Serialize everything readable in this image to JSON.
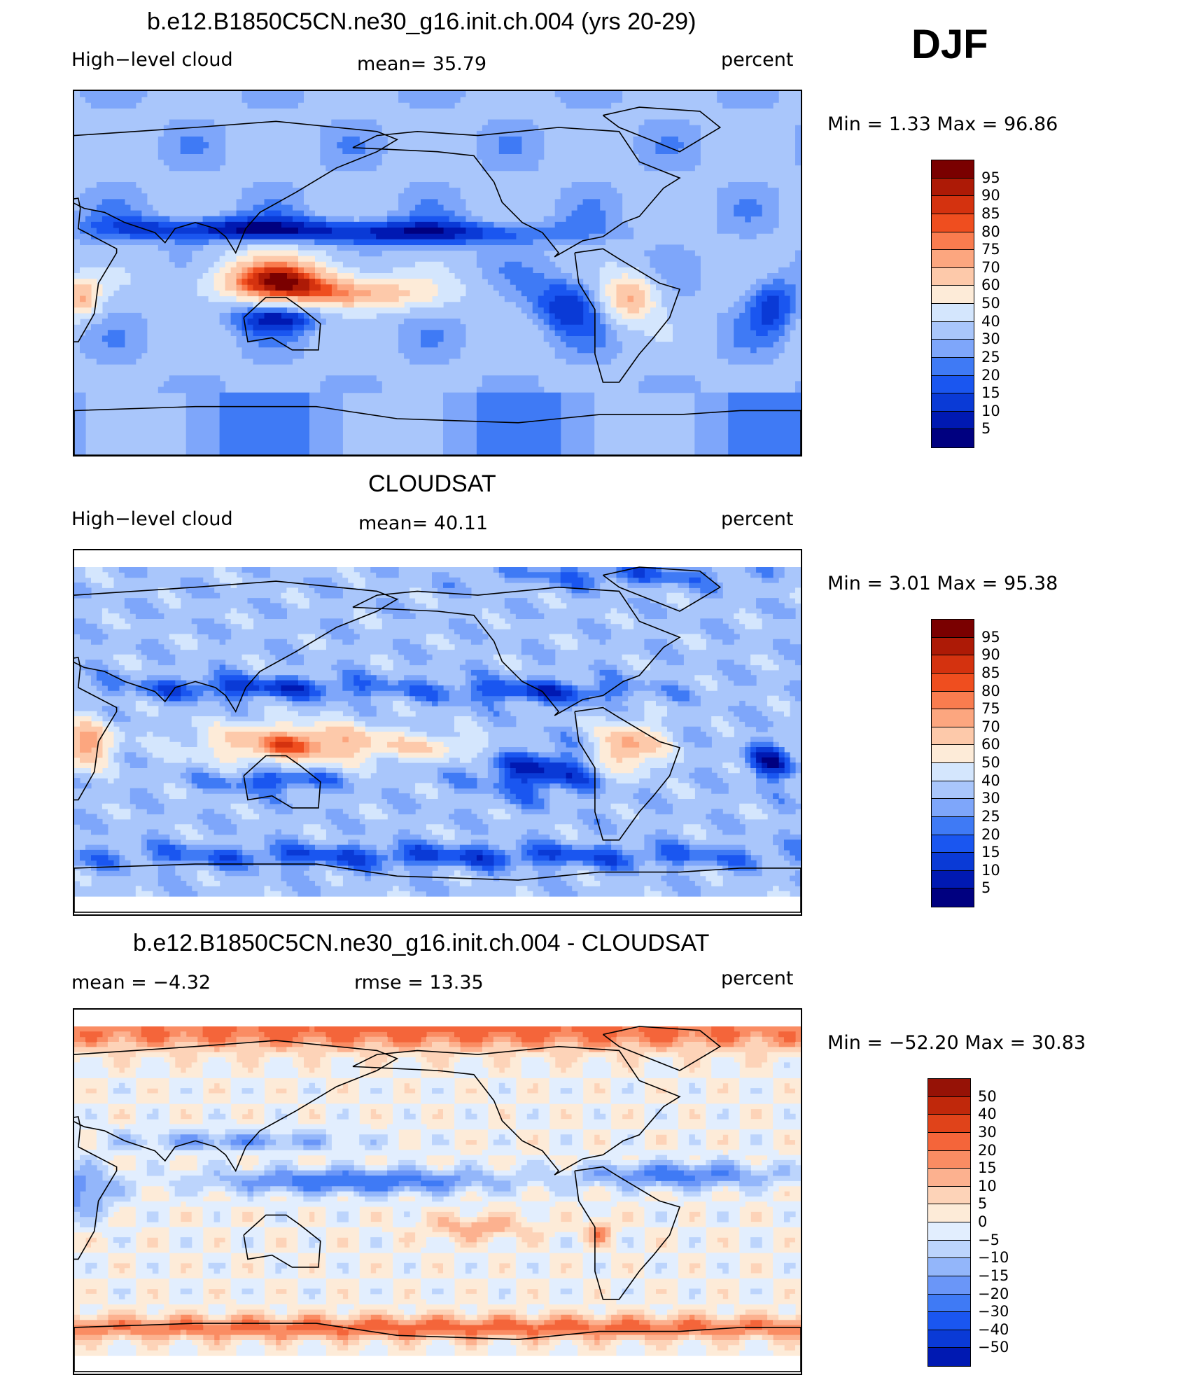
{
  "season": "DJF",
  "colors": {
    "abs": [
      "#000080",
      "#0019b2",
      "#0a3ad6",
      "#1a56f0",
      "#3f7af5",
      "#7ea6fa",
      "#a9c6fb",
      "#d4e6fd",
      "#fdebd8",
      "#fdc9aa",
      "#fca67f",
      "#f97c4f",
      "#ef4e1f",
      "#d4320f",
      "#ad1a06",
      "#7a0000"
    ],
    "diff": [
      "#000080",
      "#0019b2",
      "#0a3ad6",
      "#1a56f0",
      "#3f7af5",
      "#6a96f8",
      "#93b6fa",
      "#bcd4fc",
      "#e2eefe",
      "#fdebd8",
      "#fdd3b8",
      "#fcb18f",
      "#fa8c63",
      "#f4653a",
      "#e0431a",
      "#c0280b",
      "#961206",
      "#6a0000"
    ],
    "coast": "#000000"
  },
  "panels": [
    {
      "title": "b.e12.B1850C5CN.ne30_g16.init.ch.004 (yrs 20-29)",
      "left_label": "High−level cloud",
      "center_label": "mean=   35.79",
      "right_label": "percent",
      "minmax": "Min =     1.33  Max =    96.86",
      "levels": [
        "95",
        "90",
        "85",
        "80",
        "75",
        "70",
        "60",
        "50",
        "40",
        "30",
        "25",
        "20",
        "15",
        "10",
        "5"
      ]
    },
    {
      "title": "CLOUDSAT",
      "left_label": "High−level cloud",
      "center_label": "mean=   40.11",
      "right_label": "percent",
      "minmax": "Min =     3.01  Max =    95.38",
      "levels": [
        "95",
        "90",
        "85",
        "80",
        "75",
        "70",
        "60",
        "50",
        "40",
        "30",
        "25",
        "20",
        "15",
        "10",
        "5"
      ]
    },
    {
      "title": "b.e12.B1850C5CN.ne30_g16.init.ch.004 - CLOUDSAT",
      "left_label": "mean  =    −4.32",
      "center_label": "rmse  =    13.35",
      "right_label": "percent",
      "minmax": "Min =  −52.20  Max =    30.83",
      "levels": [
        "50",
        "40",
        "30",
        "20",
        "15",
        "10",
        "5",
        "0",
        "−5",
        "−10",
        "−15",
        "−20",
        "−30",
        "−40",
        "−50"
      ]
    }
  ],
  "chart_data": [
    {
      "type": "heatmap",
      "title": "b.e12.B1850C5CN.ne30_g16.init.ch.004 (yrs 20-29)",
      "variable": "High−level cloud",
      "units": "percent",
      "mean": 35.79,
      "min": 1.33,
      "max": 96.86,
      "contour_levels": [
        5,
        10,
        15,
        20,
        25,
        30,
        40,
        50,
        60,
        70,
        75,
        80,
        85,
        90,
        95
      ]
    },
    {
      "type": "heatmap",
      "title": "CLOUDSAT",
      "variable": "High−level cloud",
      "units": "percent",
      "mean": 40.11,
      "min": 3.01,
      "max": 95.38,
      "contour_levels": [
        5,
        10,
        15,
        20,
        25,
        30,
        40,
        50,
        60,
        70,
        75,
        80,
        85,
        90,
        95
      ]
    },
    {
      "type": "heatmap",
      "title": "b.e12.B1850C5CN.ne30_g16.init.ch.004 - CLOUDSAT",
      "units": "percent",
      "mean": -4.32,
      "rmse": 13.35,
      "min": -52.2,
      "max": 30.83,
      "contour_levels": [
        -50,
        -40,
        -30,
        -20,
        -15,
        -10,
        -5,
        0,
        5,
        10,
        15,
        20,
        30,
        40,
        50
      ]
    }
  ]
}
